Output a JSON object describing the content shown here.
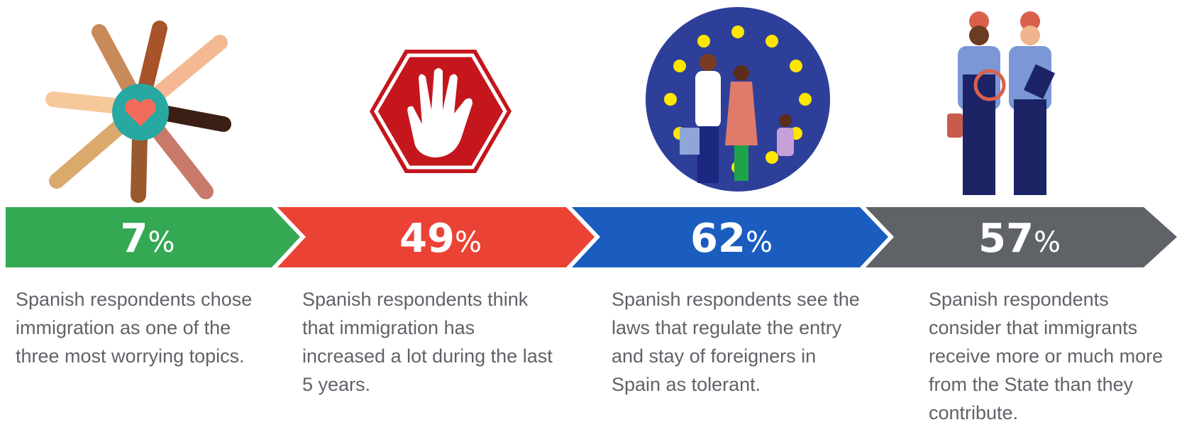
{
  "items": [
    {
      "value": "7",
      "unit": "%",
      "lines": [
        "Spanish respondents chose",
        "immigration as one of the",
        "three most worrying topics."
      ]
    },
    {
      "value": "49",
      "unit": "%",
      "lines": [
        "Spanish respondents think",
        "that immigration has",
        "increased a lot during the last",
        "5 years."
      ]
    },
    {
      "value": "62",
      "unit": "%",
      "lines": [
        "Spanish respondents see the",
        "laws that regulate the entry",
        "and stay of foreigners in",
        "Spain as tolerant."
      ]
    },
    {
      "value": "57",
      "unit": "%",
      "lines": [
        "Spanish respondents",
        "consider that immigrants",
        "receive more or much more",
        "from the State than they",
        "contribute."
      ]
    }
  ]
}
